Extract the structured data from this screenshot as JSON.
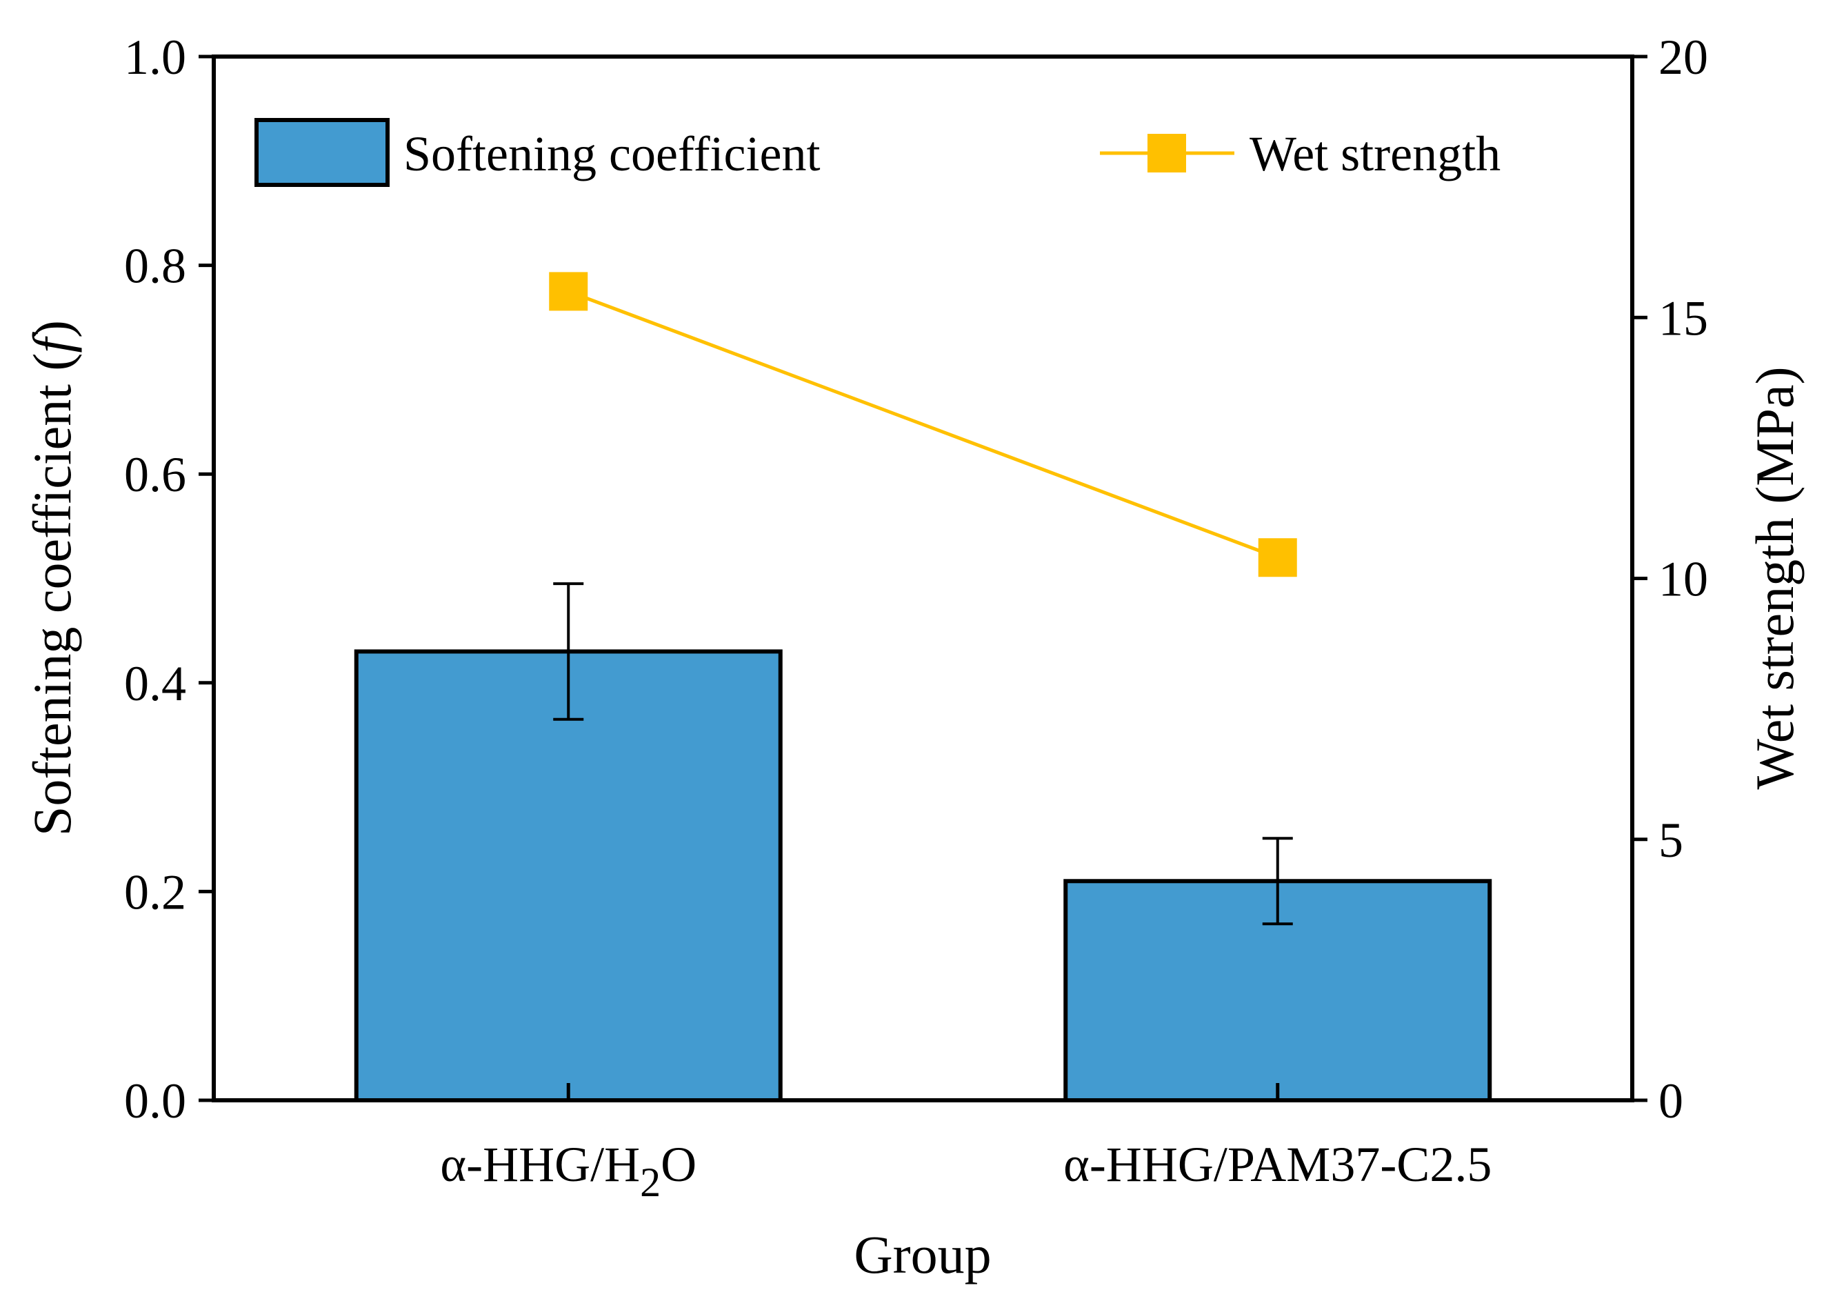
{
  "chart_data": {
    "type": "bar+line",
    "categories": [
      "α-HHG/H2O",
      "α-HHG/PAM37-C2.5"
    ],
    "category_labels": [
      {
        "prefix": "α-HHG/H",
        "sub": "2",
        "suffix": "O"
      },
      {
        "prefix": "α-HHG/PAM37-C2.5",
        "sub": "",
        "suffix": ""
      }
    ],
    "series": [
      {
        "name": "Softening coefficient",
        "type": "bar",
        "axis": "left",
        "values": [
          0.43,
          0.21
        ],
        "errors": [
          0.065,
          0.041
        ],
        "color": "#439BD0",
        "edge_color": "#000000"
      },
      {
        "name": "Wet strength",
        "type": "line",
        "axis": "right",
        "values": [
          15.5,
          10.4
        ],
        "color": "#FFC000",
        "marker": "square"
      }
    ],
    "xlabel": "Group",
    "ylabel_left_main": "Softening coefficient (",
    "ylabel_left_italic": "f",
    "ylabel_left_close": ")",
    "ylabel_right": "Wet strength (MPa)",
    "ylim_left": [
      0.0,
      1.0
    ],
    "yticks_left": [
      "0.0",
      "0.2",
      "0.4",
      "0.6",
      "0.8",
      "1.0"
    ],
    "ylim_right": [
      0,
      20
    ],
    "yticks_right": [
      "0",
      "5",
      "10",
      "15",
      "20"
    ],
    "legend": {
      "bar_label": "Softening coefficient",
      "line_label": "Wet strength",
      "placement": "top"
    },
    "grid": false
  }
}
